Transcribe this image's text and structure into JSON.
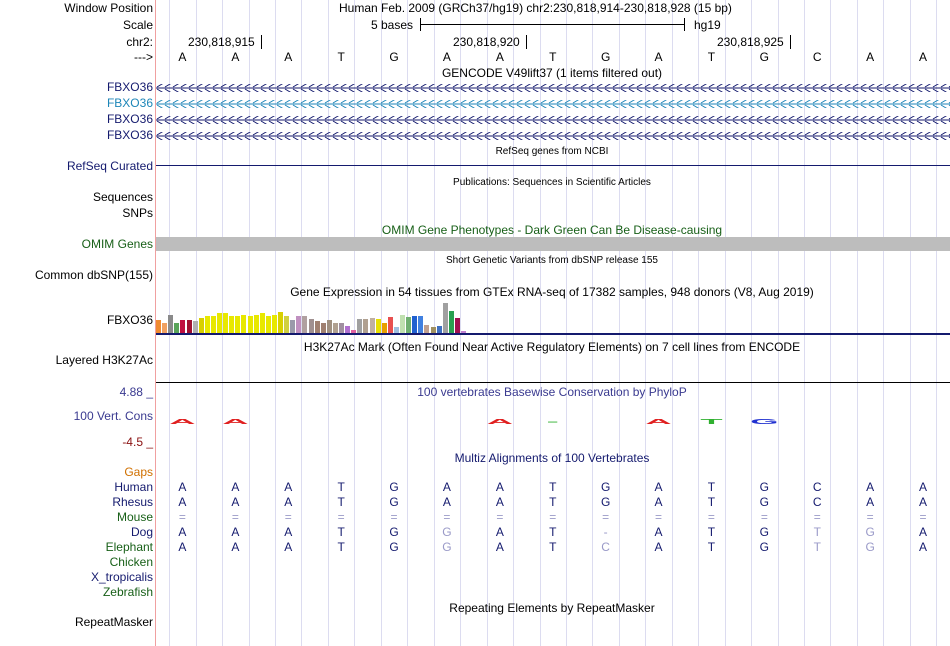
{
  "header": {
    "window_position_label": "Window Position",
    "window_position_value": "Human Feb. 2009 (GRCh37/hg19)   chr2:230,818,914-230,818,928 (15 bp)",
    "scale_label": "Scale",
    "scale_value": "5 bases",
    "assembly": "hg19",
    "chr_label": "chr2:",
    "coords": [
      "230,818,915",
      "230,818,920",
      "230,818,925"
    ],
    "strand_label": "--->"
  },
  "bases": [
    "A",
    "A",
    "A",
    "T",
    "G",
    "A",
    "A",
    "T",
    "G",
    "A",
    "T",
    "G",
    "C",
    "A",
    "A"
  ],
  "tracks": {
    "gencode_title": "GENCODE V49lift37 (1 items filtered out)",
    "gencode_genes": [
      "FBXO36",
      "FBXO36",
      "FBXO36",
      "FBXO36"
    ],
    "refseq_label": "RefSeq Curated",
    "refseq_title": "RefSeq genes from NCBI",
    "pubs_title": "Publications: Sequences in Scientific Articles",
    "sequences_label": "Sequences",
    "snps_label": "SNPs",
    "omim_title": "OMIM Gene Phenotypes - Dark Green Can Be Disease-causing",
    "omim_label": "OMIM Genes",
    "dbsnp_title": "Short Genetic Variants from dbSNP release 155",
    "dbsnp_label": "Common dbSNP(155)",
    "gtex_title": "Gene Expression in 54 tissues from GTEx RNA-seq of 17382 samples, 948 donors (V8, Aug 2019)",
    "gtex_label": "FBXO36",
    "h3k27_title": "H3K27Ac Mark (Often Found Near Active Regulatory Elements) on 7 cell lines from ENCODE",
    "h3k27_label": "Layered H3K27Ac",
    "cons_title": "100 vertebrates Basewise Conservation by PhyloP",
    "cons_label": "100 Vert. Cons",
    "cons_max": "4.88 _",
    "cons_min": "-4.5 _",
    "multiz_title": "Multiz Alignments of 100 Vertebrates",
    "gaps_label": "Gaps",
    "repeat_title": "Repeating Elements by RepeatMasker",
    "repeat_label": "RepeatMasker"
  },
  "species": [
    {
      "name": "Human",
      "color": "#141a6e",
      "seq": [
        "A",
        "A",
        "A",
        "T",
        "G",
        "A",
        "A",
        "T",
        "G",
        "A",
        "T",
        "G",
        "C",
        "A",
        "A"
      ]
    },
    {
      "name": "Rhesus",
      "color": "#141a6e",
      "seq": [
        "A",
        "A",
        "A",
        "T",
        "G",
        "A",
        "A",
        "T",
        "G",
        "A",
        "T",
        "G",
        "C",
        "A",
        "A"
      ]
    },
    {
      "name": "Mouse",
      "color": "#175f17",
      "seq": [
        "=",
        "=",
        "=",
        "=",
        "=",
        "=",
        "=",
        "=",
        "=",
        "=",
        "=",
        "=",
        "=",
        "=",
        "="
      ]
    },
    {
      "name": "Dog",
      "color": "#141a6e",
      "seq": [
        "A",
        "A",
        "A",
        "T",
        "G",
        "G",
        "A",
        "T",
        "-",
        "A",
        "T",
        "G",
        "T",
        "G",
        "A"
      ]
    },
    {
      "name": "Elephant",
      "color": "#175f17",
      "seq": [
        "A",
        "A",
        "A",
        "T",
        "G",
        "G",
        "A",
        "T",
        "C",
        "A",
        "T",
        "G",
        "T",
        "G",
        "A"
      ]
    },
    {
      "name": "Chicken",
      "color": "#175f17",
      "seq": []
    },
    {
      "name": "X_tropicalis",
      "color": "#141a6e",
      "seq": []
    },
    {
      "name": "Zebrafish",
      "color": "#175f17",
      "seq": []
    }
  ],
  "gtex_colors": [
    "#f08a30",
    "#f0a060",
    "#8a8a8a",
    "#5aa55a",
    "#c01040",
    "#a01030",
    "#b0b0b0",
    "#d8d000",
    "#e8e800",
    "#e8e800",
    "#e8e800",
    "#e8e800",
    "#e8e800",
    "#e8e800",
    "#e8e800",
    "#e8e800",
    "#e8e800",
    "#e8e800",
    "#e8e800",
    "#e8e800",
    "#d8d000",
    "#d0d040",
    "#9a9aaa",
    "#c090c0",
    "#b0a0a0",
    "#a09090",
    "#a08070",
    "#a08070",
    "#a09080",
    "#b0a090",
    "#a090a0",
    "#b070d0",
    "#e060a0",
    "#a0a0a0",
    "#b0a090",
    "#c0b0a0",
    "#e8e000",
    "#e8a000",
    "#e85050",
    "#a0c0e0",
    "#c0e0b0",
    "#70b070",
    "#2060d0",
    "#4080e0",
    "#c0a090",
    "#a09060",
    "#4070c0",
    "#a0a0a0",
    "#28a050",
    "#a01050",
    "#c080d0"
  ],
  "gtex_values": [
    0.55,
    0.45,
    0.8,
    0.45,
    0.55,
    0.55,
    0.5,
    0.65,
    0.75,
    0.75,
    0.85,
    0.85,
    0.75,
    0.75,
    0.8,
    0.75,
    0.8,
    0.85,
    0.75,
    0.8,
    0.9,
    0.75,
    0.55,
    0.75,
    0.75,
    0.6,
    0.5,
    0.45,
    0.55,
    0.45,
    0.45,
    0.3,
    0.15,
    0.6,
    0.6,
    0.65,
    0.6,
    0.45,
    0.7,
    0.25,
    0.8,
    0.7,
    0.75,
    0.75,
    0.35,
    0.25,
    0.3,
    1.3,
    0.95,
    0.65,
    0.1
  ],
  "phylop": [
    "A",
    "A",
    "",
    "",
    "",
    "",
    "A",
    "-",
    "",
    "A",
    "T",
    "G",
    "",
    "",
    ""
  ],
  "phylop_colors": [
    "#e02020",
    "#e02020",
    "",
    "",
    "",
    "",
    "#e02020",
    "#30b030",
    "",
    "#e02020",
    "#30b030",
    "#2030d0",
    "",
    "",
    ""
  ]
}
